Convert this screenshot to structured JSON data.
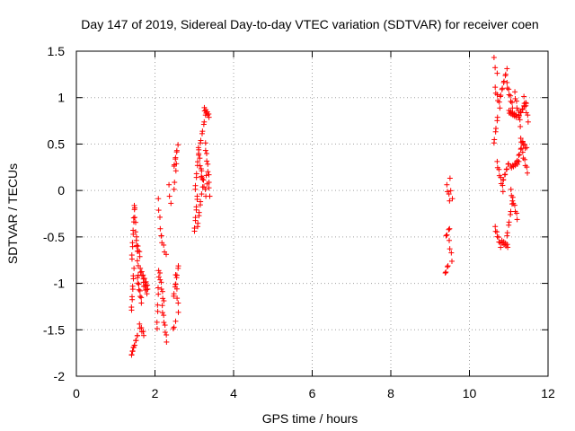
{
  "chart_data": {
    "type": "scatter",
    "title": "Day 147 of 2019, Sidereal Day-to-day VTEC variation (SDTVAR) for receiver coen",
    "xlabel": "GPS time / hours",
    "ylabel": "SDTVAR / TECUs",
    "xlim": [
      0,
      12
    ],
    "ylim": [
      -2,
      1.5
    ],
    "xticks": [
      "0",
      "2",
      "4",
      "6",
      "8",
      "10",
      "12"
    ],
    "xtick_values": [
      0,
      2,
      4,
      6,
      8,
      10,
      12
    ],
    "yticks": [
      "1.5",
      "1",
      "0.5",
      "0",
      "-0.5",
      "-1",
      "-1.5",
      "-2"
    ],
    "ytick_values": [
      1.5,
      1,
      0.5,
      0,
      -0.5,
      -1,
      -1.5,
      -2
    ],
    "grid": true,
    "marker": "+",
    "color": "#ff0000",
    "series": [
      {
        "name": "SDTVAR",
        "segments": [
          {
            "x0": 1.4,
            "x1": 1.46,
            "y0": -1.78,
            "y1": -1.68,
            "n": 6
          },
          {
            "x0": 1.47,
            "x1": 1.56,
            "y0": -1.68,
            "y1": -1.55,
            "n": 6
          },
          {
            "x0": 1.4,
            "x1": 1.46,
            "y0": -1.3,
            "y1": -0.85,
            "n": 9
          },
          {
            "x0": 1.41,
            "x1": 1.48,
            "y0": -0.75,
            "y1": -0.15,
            "n": 10
          },
          {
            "x0": 1.48,
            "x1": 1.58,
            "y0": -0.2,
            "y1": -0.9,
            "n": 10
          },
          {
            "x0": 1.52,
            "x1": 1.62,
            "y0": -0.55,
            "y1": -0.7,
            "n": 6
          },
          {
            "x0": 1.55,
            "x1": 1.66,
            "y0": -0.95,
            "y1": -1.2,
            "n": 8
          },
          {
            "x0": 1.6,
            "x1": 1.72,
            "y0": -1.45,
            "y1": -1.55,
            "n": 6
          },
          {
            "x0": 1.62,
            "x1": 1.82,
            "y0": -0.85,
            "y1": -1.05,
            "n": 12
          },
          {
            "x0": 1.7,
            "x1": 1.8,
            "y0": -1.0,
            "y1": -1.1,
            "n": 6
          },
          {
            "x0": 2.05,
            "x1": 2.1,
            "y0": -1.5,
            "y1": -0.85,
            "n": 8
          },
          {
            "x0": 2.08,
            "x1": 2.16,
            "y0": -0.1,
            "y1": -0.5,
            "n": 5
          },
          {
            "x0": 2.12,
            "x1": 2.22,
            "y0": -0.9,
            "y1": -1.2,
            "n": 7
          },
          {
            "x0": 2.15,
            "x1": 2.28,
            "y0": -0.5,
            "y1": -0.7,
            "n": 5
          },
          {
            "x0": 2.18,
            "x1": 2.3,
            "y0": -1.25,
            "y1": -1.62,
            "n": 8
          },
          {
            "x0": 2.35,
            "x1": 2.4,
            "y0": 0.05,
            "y1": -0.15,
            "n": 3
          },
          {
            "x0": 2.46,
            "x1": 2.52,
            "y0": -1.5,
            "y1": -1.42,
            "n": 3
          },
          {
            "x0": 2.47,
            "x1": 2.6,
            "y0": -1.15,
            "y1": -0.8,
            "n": 8
          },
          {
            "x0": 2.48,
            "x1": 2.58,
            "y0": 0.25,
            "y1": 0.48,
            "n": 7
          },
          {
            "x0": 2.52,
            "x1": 2.6,
            "y0": -0.92,
            "y1": -1.3,
            "n": 6
          },
          {
            "x0": 2.48,
            "x1": 2.55,
            "y0": 0.0,
            "y1": 0.3,
            "n": 4
          },
          {
            "x0": 3.0,
            "x1": 3.08,
            "y0": -0.45,
            "y1": -0.05,
            "n": 8
          },
          {
            "x0": 3.02,
            "x1": 3.12,
            "y0": 0.0,
            "y1": 0.45,
            "n": 8
          },
          {
            "x0": 3.08,
            "x1": 3.18,
            "y0": -0.4,
            "y1": -0.05,
            "n": 7
          },
          {
            "x0": 3.1,
            "x1": 3.22,
            "y0": 0.45,
            "y1": 0.05,
            "n": 8
          },
          {
            "x0": 3.15,
            "x1": 3.28,
            "y0": 0.5,
            "y1": 0.8,
            "n": 7
          },
          {
            "x0": 3.18,
            "x1": 3.3,
            "y0": 0.2,
            "y1": -0.05,
            "n": 6
          },
          {
            "x0": 3.25,
            "x1": 3.38,
            "y0": 0.88,
            "y1": 0.8,
            "n": 8
          },
          {
            "x0": 3.28,
            "x1": 3.38,
            "y0": 0.5,
            "y1": 0.1,
            "n": 8
          },
          {
            "x0": 3.3,
            "x1": 3.4,
            "y0": 0.15,
            "y1": -0.05,
            "n": 4
          },
          {
            "x0": 9.38,
            "x1": 9.46,
            "y0": -0.9,
            "y1": -0.8,
            "n": 4
          },
          {
            "x0": 9.4,
            "x1": 9.5,
            "y0": -0.5,
            "y1": -0.4,
            "n": 4
          },
          {
            "x0": 9.42,
            "x1": 9.5,
            "y0": 0.05,
            "y1": -0.1,
            "n": 4
          },
          {
            "x0": 9.5,
            "x1": 9.56,
            "y0": 0.12,
            "y1": -0.1,
            "n": 3
          },
          {
            "x0": 9.48,
            "x1": 9.56,
            "y0": -0.55,
            "y1": -0.75,
            "n": 4
          },
          {
            "x0": 10.62,
            "x1": 10.7,
            "y0": 1.42,
            "y1": 1.25,
            "n": 3
          },
          {
            "x0": 10.62,
            "x1": 10.72,
            "y0": 0.5,
            "y1": 0.8,
            "n": 6
          },
          {
            "x0": 10.65,
            "x1": 10.78,
            "y0": 1.1,
            "y1": 0.9,
            "n": 6
          },
          {
            "x0": 10.65,
            "x1": 10.8,
            "y0": -0.4,
            "y1": -0.6,
            "n": 8
          },
          {
            "x0": 10.7,
            "x1": 10.86,
            "y0": 0.3,
            "y1": 0.0,
            "n": 8
          },
          {
            "x0": 10.78,
            "x1": 10.95,
            "y0": 1.0,
            "y1": 1.3,
            "n": 9
          },
          {
            "x0": 10.82,
            "x1": 10.98,
            "y0": -0.55,
            "y1": -0.6,
            "n": 8
          },
          {
            "x0": 10.85,
            "x1": 11.0,
            "y0": 0.1,
            "y1": 0.3,
            "n": 8
          },
          {
            "x0": 10.95,
            "x1": 11.1,
            "y0": 1.15,
            "y1": 0.9,
            "n": 8
          },
          {
            "x0": 10.95,
            "x1": 11.1,
            "y0": -0.5,
            "y1": -0.1,
            "n": 8
          },
          {
            "x0": 11.0,
            "x1": 11.2,
            "y0": 0.85,
            "y1": 0.8,
            "n": 10
          },
          {
            "x0": 11.05,
            "x1": 11.22,
            "y0": 0.0,
            "y1": -0.3,
            "n": 8
          },
          {
            "x0": 11.05,
            "x1": 11.25,
            "y0": 0.25,
            "y1": 0.3,
            "n": 9
          },
          {
            "x0": 11.15,
            "x1": 11.3,
            "y0": 1.05,
            "y1": 0.7,
            "n": 8
          },
          {
            "x0": 11.2,
            "x1": 11.35,
            "y0": 0.3,
            "y1": 0.5,
            "n": 7
          },
          {
            "x0": 11.25,
            "x1": 11.45,
            "y0": 0.8,
            "y1": 0.95,
            "n": 10
          },
          {
            "x0": 11.3,
            "x1": 11.45,
            "y0": 0.55,
            "y1": 0.45,
            "n": 7
          },
          {
            "x0": 11.35,
            "x1": 11.48,
            "y0": 0.4,
            "y1": 0.2,
            "n": 6
          },
          {
            "x0": 11.38,
            "x1": 11.5,
            "y0": 1.0,
            "y1": 0.75,
            "n": 6
          }
        ]
      }
    ]
  }
}
